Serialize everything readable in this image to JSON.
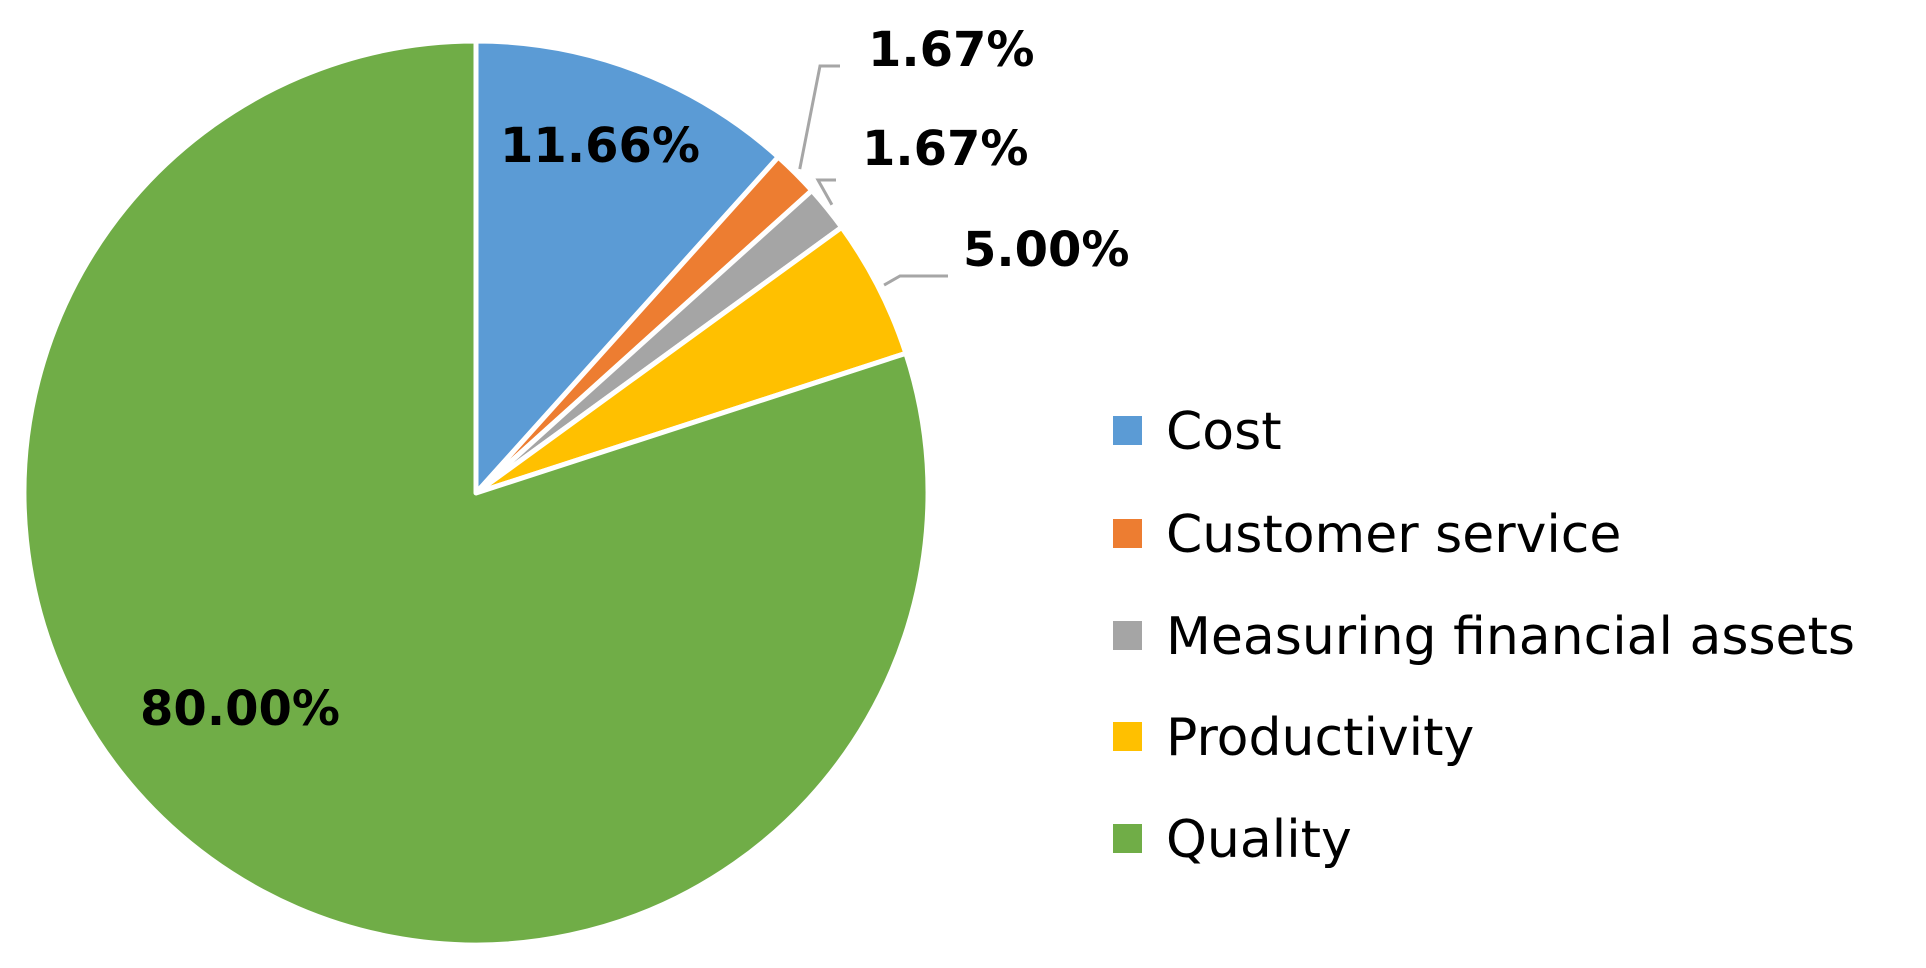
{
  "chart_data": {
    "type": "pie",
    "categories": [
      "Cost",
      "Customer service",
      "Measuring financial assets",
      "Productivity",
      "Quality"
    ],
    "values": [
      11.66,
      1.67,
      1.67,
      5.0,
      80.0
    ],
    "labels": [
      "11.66%",
      "1.67%",
      "1.67%",
      "5.00%",
      "80.00%"
    ],
    "colors": [
      "#5b9bd5",
      "#ed7d31",
      "#a5a5a5",
      "#ffc000",
      "#70ad47"
    ],
    "start_angle": "12 o'clock",
    "direction": "clockwise",
    "legend_position": "right",
    "title": ""
  }
}
